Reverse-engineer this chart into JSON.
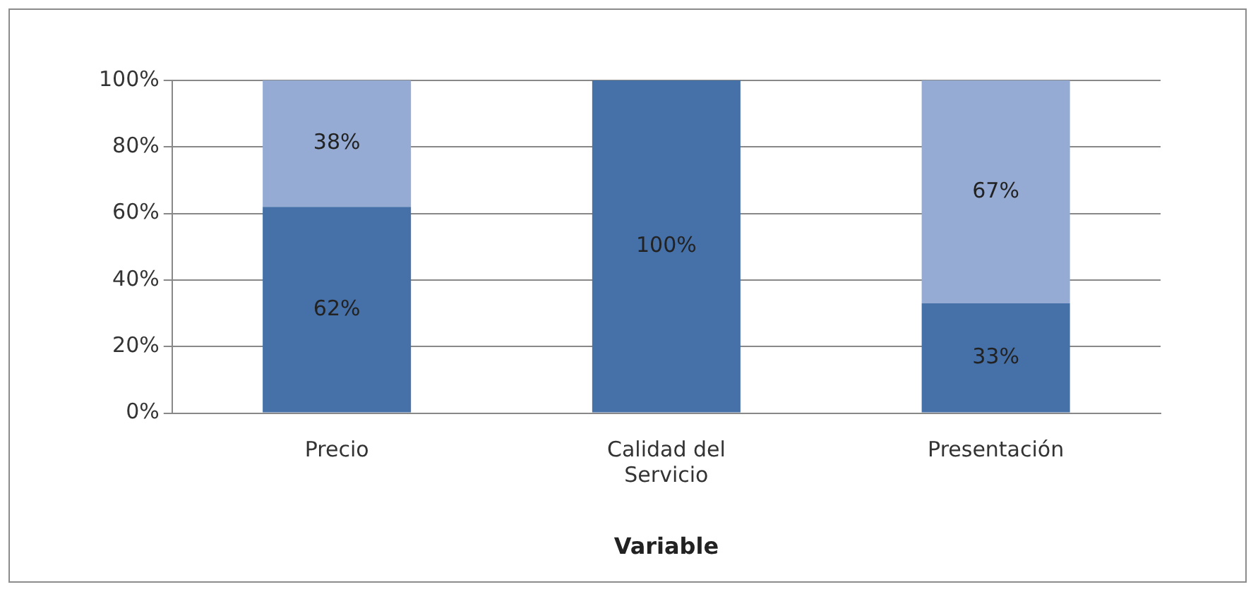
{
  "chart_data": {
    "type": "bar",
    "stacked": true,
    "xlabel": "Variable",
    "categories": [
      "Precio",
      "Calidad del Servicio",
      "Presentación"
    ],
    "series": [
      {
        "color": "#4670a8",
        "values": [
          62,
          100,
          33
        ],
        "value_labels": [
          "62%",
          "100%",
          "33%"
        ]
      },
      {
        "color": "#95abd4",
        "values": [
          38,
          null,
          67
        ],
        "value_labels": [
          "38%",
          null,
          "67%"
        ]
      }
    ],
    "ylim": [
      0,
      100
    ],
    "yticks": [
      {
        "value": 0,
        "label": "0%"
      },
      {
        "value": 20,
        "label": "20%"
      },
      {
        "value": 40,
        "label": "40%"
      },
      {
        "value": 60,
        "label": "60%"
      },
      {
        "value": 80,
        "label": "80%"
      },
      {
        "value": 100,
        "label": "100%"
      }
    ],
    "grid": "y",
    "legend": false
  }
}
